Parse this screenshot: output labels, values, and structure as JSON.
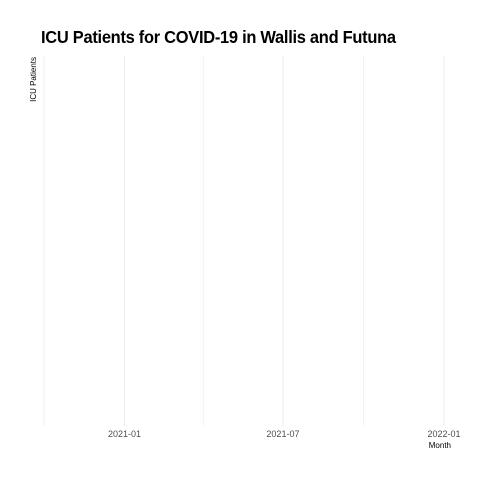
{
  "chart_data": {
    "type": "line",
    "title": "ICU Patients for COVID-19 in Wallis and Futuna",
    "xlabel": "Month",
    "ylabel": "ICU Patients",
    "x_major_ticks": [
      "2021-01",
      "2021-07",
      "2022-01"
    ],
    "x_minor_ticks": [
      "2020-10",
      "2021-04",
      "2021-10"
    ],
    "xlim": [
      "2020-10-01",
      "2022-01-01"
    ],
    "series": [],
    "grid": true,
    "legend": "none"
  }
}
